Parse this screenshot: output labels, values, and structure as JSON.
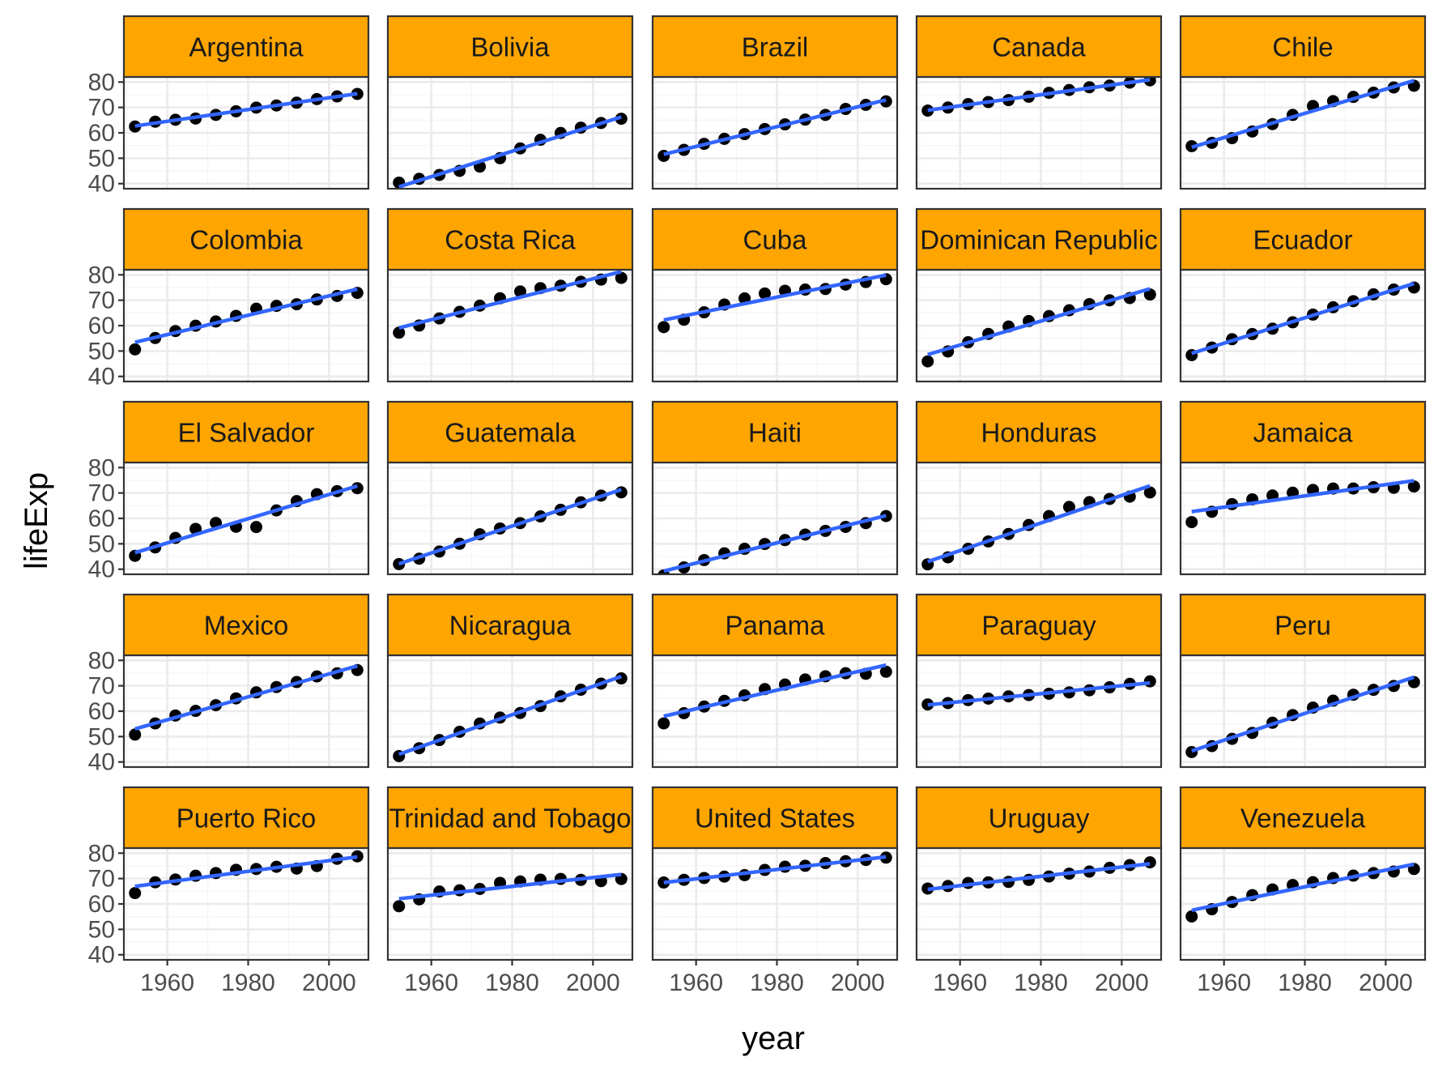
{
  "chart_data": {
    "type": "scatter",
    "facet_by": "country",
    "xlabel": "year",
    "ylabel": "lifeExp",
    "x": [
      1952,
      1957,
      1962,
      1967,
      1972,
      1977,
      1982,
      1987,
      1992,
      1997,
      2002,
      2007
    ],
    "xlim": [
      1949.25,
      2009.75
    ],
    "ylim": [
      38,
      82
    ],
    "x_ticks": [
      1960,
      1980,
      2000
    ],
    "x_tick_labels": [
      "1960",
      "1980",
      "2000"
    ],
    "y_ticks": [
      40,
      50,
      60,
      70,
      80
    ],
    "y_tick_labels": [
      "40",
      "50",
      "60",
      "70",
      "80"
    ],
    "grid": true,
    "trend_line": "linear fit per panel",
    "colors": {
      "strip_fill": "#FFA500",
      "strip_border": "#333333",
      "panel_border": "#333333",
      "grid_major": "#EBEBEB",
      "grid_minor": "#F5F5F5",
      "points": "#000000",
      "trend_line": "#3366FF",
      "tick_text": "#4D4D4D"
    },
    "series": [
      {
        "name": "Argentina",
        "values": [
          62.49,
          64.4,
          65.14,
          65.63,
          67.07,
          68.48,
          69.94,
          70.77,
          71.87,
          73.28,
          74.34,
          75.32
        ]
      },
      {
        "name": "Bolivia",
        "values": [
          40.41,
          41.89,
          43.43,
          45.03,
          46.71,
          50.02,
          53.86,
          57.25,
          59.96,
          62.05,
          63.88,
          65.55
        ]
      },
      {
        "name": "Brazil",
        "values": [
          50.92,
          53.29,
          55.67,
          57.63,
          59.5,
          61.49,
          63.34,
          65.21,
          67.06,
          69.39,
          71.01,
          72.39
        ]
      },
      {
        "name": "Canada",
        "values": [
          68.75,
          69.96,
          71.3,
          72.13,
          72.88,
          74.21,
          75.76,
          76.86,
          77.95,
          78.61,
          79.77,
          80.65
        ]
      },
      {
        "name": "Chile",
        "values": [
          54.75,
          56.07,
          57.92,
          60.52,
          63.44,
          67.05,
          70.57,
          72.49,
          74.13,
          75.82,
          77.86,
          78.55
        ]
      },
      {
        "name": "Colombia",
        "values": [
          50.64,
          55.12,
          57.86,
          59.96,
          61.62,
          63.84,
          66.65,
          67.77,
          68.42,
          70.31,
          71.68,
          72.89
        ]
      },
      {
        "name": "Costa Rica",
        "values": [
          57.21,
          60.03,
          62.84,
          65.42,
          67.85,
          70.75,
          73.45,
          74.75,
          75.71,
          77.26,
          78.12,
          78.78
        ]
      },
      {
        "name": "Cuba",
        "values": [
          59.42,
          62.33,
          65.25,
          68.29,
          70.72,
          72.65,
          73.72,
          74.17,
          74.41,
          76.15,
          77.16,
          78.27
        ]
      },
      {
        "name": "Dominican Republic",
        "values": [
          45.93,
          49.83,
          53.46,
          56.75,
          59.63,
          61.79,
          63.73,
          66.05,
          68.46,
          69.96,
          70.85,
          72.24
        ]
      },
      {
        "name": "Ecuador",
        "values": [
          48.36,
          51.36,
          54.64,
          56.68,
          58.8,
          61.31,
          64.34,
          67.23,
          69.61,
          72.31,
          74.17,
          74.99
        ]
      },
      {
        "name": "El Salvador",
        "values": [
          45.26,
          48.57,
          52.31,
          55.86,
          58.21,
          56.7,
          56.6,
          63.15,
          66.8,
          69.54,
          70.73,
          71.88
        ]
      },
      {
        "name": "Guatemala",
        "values": [
          42.02,
          44.14,
          46.95,
          50.02,
          53.74,
          56.03,
          58.14,
          60.78,
          63.37,
          66.32,
          68.98,
          70.26
        ]
      },
      {
        "name": "Haiti",
        "values": [
          37.58,
          40.7,
          43.59,
          46.24,
          48.04,
          49.92,
          51.46,
          53.64,
          55.09,
          56.67,
          58.14,
          60.92
        ]
      },
      {
        "name": "Honduras",
        "values": [
          41.91,
          44.67,
          48.04,
          50.92,
          53.88,
          57.4,
          60.91,
          64.49,
          66.4,
          67.66,
          68.57,
          70.2
        ]
      },
      {
        "name": "Jamaica",
        "values": [
          58.53,
          62.61,
          65.61,
          67.51,
          69.0,
          70.11,
          71.21,
          71.77,
          71.77,
          72.26,
          72.05,
          72.57
        ]
      },
      {
        "name": "Mexico",
        "values": [
          50.79,
          55.19,
          58.3,
          60.11,
          62.36,
          65.03,
          67.41,
          69.5,
          71.46,
          73.67,
          74.9,
          76.2
        ]
      },
      {
        "name": "Nicaragua",
        "values": [
          42.31,
          45.43,
          48.63,
          51.88,
          55.15,
          57.47,
          59.3,
          62.01,
          65.84,
          68.43,
          70.84,
          72.9
        ]
      },
      {
        "name": "Panama",
        "values": [
          55.19,
          59.2,
          61.82,
          64.07,
          66.22,
          68.68,
          70.47,
          72.46,
          73.74,
          74.94,
          74.71,
          75.54
        ]
      },
      {
        "name": "Paraguay",
        "values": [
          62.65,
          63.2,
          64.36,
          64.95,
          65.82,
          66.35,
          66.87,
          67.38,
          68.23,
          69.4,
          70.76,
          71.75
        ]
      },
      {
        "name": "Peru",
        "values": [
          43.9,
          46.26,
          49.1,
          51.45,
          55.45,
          58.45,
          61.41,
          64.13,
          66.46,
          68.39,
          69.91,
          71.42
        ]
      },
      {
        "name": "Puerto Rico",
        "values": [
          64.28,
          68.54,
          69.62,
          71.1,
          72.16,
          73.44,
          73.75,
          74.63,
          73.91,
          74.92,
          77.78,
          78.75
        ]
      },
      {
        "name": "Trinidad and Tobago",
        "values": [
          59.1,
          61.8,
          64.9,
          65.4,
          65.9,
          68.3,
          68.83,
          69.58,
          69.86,
          69.47,
          68.98,
          69.82
        ]
      },
      {
        "name": "United States",
        "values": [
          68.44,
          69.49,
          70.21,
          70.76,
          71.34,
          73.38,
          74.65,
          75.02,
          76.09,
          76.81,
          77.31,
          78.24
        ]
      },
      {
        "name": "Uruguay",
        "values": [
          66.07,
          67.04,
          68.25,
          68.47,
          68.67,
          69.48,
          70.81,
          71.92,
          72.75,
          74.22,
          75.31,
          76.38
        ]
      },
      {
        "name": "Venezuela",
        "values": [
          55.09,
          57.91,
          60.77,
          63.48,
          65.71,
          67.46,
          68.56,
          70.19,
          71.15,
          72.15,
          72.77,
          73.75
        ]
      }
    ]
  }
}
